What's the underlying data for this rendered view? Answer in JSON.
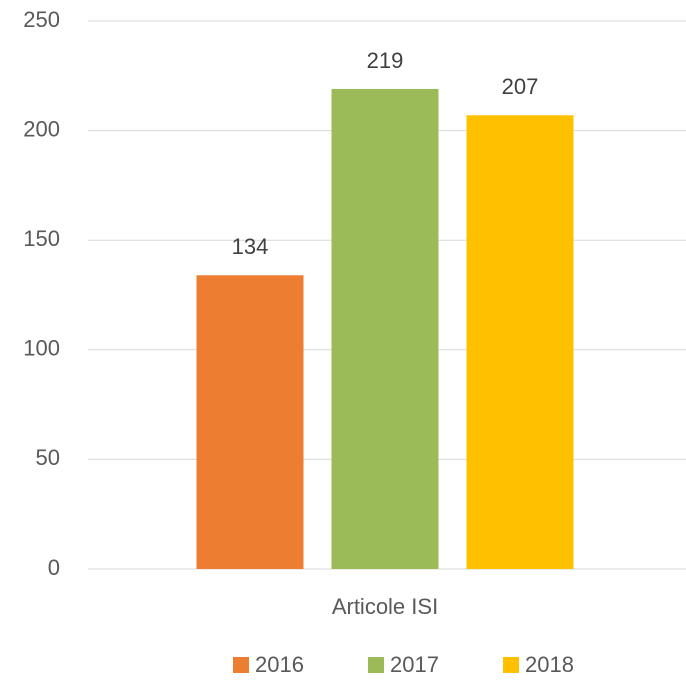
{
  "chart_data": {
    "type": "bar",
    "categories": [
      "Articole ISI"
    ],
    "series": [
      {
        "name": "2016",
        "color": "#ED7D31",
        "values": [
          134
        ]
      },
      {
        "name": "2017",
        "color": "#9BBB59",
        "values": [
          219
        ]
      },
      {
        "name": "2018",
        "color": "#FFC000",
        "values": [
          207
        ]
      }
    ],
    "ylim": [
      0,
      250
    ],
    "yticks": [
      0,
      50,
      100,
      150,
      200,
      250
    ],
    "grid": true,
    "legend": "bottom"
  }
}
